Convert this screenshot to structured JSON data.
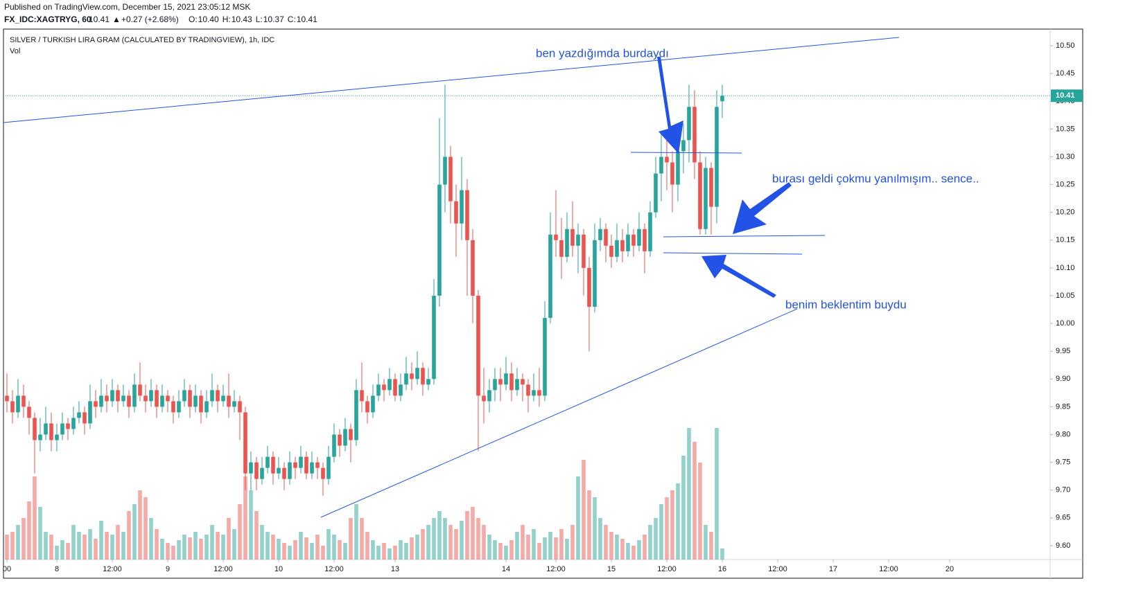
{
  "header": {
    "published": "Published on TradingView.com, December 15, 2021 23:05:12 MSK",
    "symbol": "FX_IDC:XAGTRYG, 60",
    "last": "10.41",
    "arrow": "▲",
    "change": "+0.27 (+2.68%)",
    "ohlc": [
      {
        "key": "O:",
        "value": "10.40"
      },
      {
        "key": "H:",
        "value": "10.43"
      },
      {
        "key": "L:",
        "value": "10.37"
      },
      {
        "key": "C:",
        "value": "10.41"
      }
    ]
  },
  "chart_data": {
    "type": "candlestick",
    "title": "SILVER / TURKISH LIRA GRAM (CALCULATED BY TRADINGVIEW), 1h, IDC",
    "volume_label": "Vol",
    "annotations": [
      "ben yazdığımda burdaydı",
      "burası geldi çokmu yanılmışım.. sence..",
      "benim beklentim buydu"
    ],
    "up_color": "#26a69a",
    "down_color": "#ef5350",
    "grid": false,
    "last_price": 10.41,
    "ylim": [
      9.575,
      10.53
    ],
    "yticks": [
      {
        "value": 9.6,
        "label": "9.60"
      },
      {
        "value": 9.65,
        "label": "9.65"
      },
      {
        "value": 9.7,
        "label": "9.70"
      },
      {
        "value": 9.75,
        "label": "9.75"
      },
      {
        "value": 9.8,
        "label": "9.80"
      },
      {
        "value": 9.85,
        "label": "9.85"
      },
      {
        "value": 9.9,
        "label": "9.90"
      },
      {
        "value": 9.95,
        "label": "9.95"
      },
      {
        "value": 10.0,
        "label": "10.00"
      },
      {
        "value": 10.05,
        "label": "10.05"
      },
      {
        "value": 10.1,
        "label": "10.10"
      },
      {
        "value": 10.15,
        "label": "10.15"
      },
      {
        "value": 10.2,
        "label": "10.20"
      },
      {
        "value": 10.25,
        "label": "10.25"
      },
      {
        "value": 10.3,
        "label": "10.30"
      },
      {
        "value": 10.35,
        "label": "10.35"
      },
      {
        "value": 10.4,
        "label": "10.40"
      },
      {
        "value": 10.45,
        "label": "10.45"
      },
      {
        "value": 10.5,
        "label": "10.50"
      }
    ],
    "xlim": [
      -0.625,
      188.125
    ],
    "xticks": [
      {
        "value": 0,
        "label": "00"
      },
      {
        "value": 9,
        "label": "8"
      },
      {
        "value": 19,
        "label": "12:00"
      },
      {
        "value": 29,
        "label": "9"
      },
      {
        "value": 39,
        "label": "12:00"
      },
      {
        "value": 49,
        "label": "10"
      },
      {
        "value": 59,
        "label": "12:00"
      },
      {
        "value": 70,
        "label": "13"
      },
      {
        "value": 90,
        "label": "14"
      },
      {
        "value": 99,
        "label": "12:00"
      },
      {
        "value": 109,
        "label": "15"
      },
      {
        "value": 119,
        "label": "12:00"
      },
      {
        "value": 129,
        "label": "16"
      },
      {
        "value": 139,
        "label": "12:00"
      },
      {
        "value": 149,
        "label": "17"
      },
      {
        "value": 159,
        "label": "12:00"
      },
      {
        "value": 170,
        "label": "20"
      }
    ],
    "volume_lim": [
      0,
      100
    ],
    "candles": [
      [
        9.87,
        9.91,
        9.84,
        9.86,
        18
      ],
      [
        9.86,
        9.88,
        9.82,
        9.84,
        20
      ],
      [
        9.84,
        9.9,
        9.83,
        9.87,
        25
      ],
      [
        9.87,
        9.89,
        9.83,
        9.85,
        30
      ],
      [
        9.85,
        9.86,
        9.8,
        9.83,
        42
      ],
      [
        9.83,
        9.84,
        9.73,
        9.79,
        60
      ],
      [
        9.79,
        9.83,
        9.77,
        9.8,
        38
      ],
      [
        9.8,
        9.85,
        9.79,
        9.82,
        20
      ],
      [
        9.82,
        9.84,
        9.77,
        9.79,
        18
      ],
      [
        9.79,
        9.82,
        9.77,
        9.8,
        10
      ],
      [
        9.8,
        9.84,
        9.79,
        9.82,
        14
      ],
      [
        9.82,
        9.83,
        9.79,
        9.81,
        12
      ],
      [
        9.81,
        9.85,
        9.8,
        9.83,
        25
      ],
      [
        9.83,
        9.86,
        9.82,
        9.84,
        20
      ],
      [
        9.84,
        9.85,
        9.8,
        9.82,
        18
      ],
      [
        9.82,
        9.89,
        9.81,
        9.86,
        22
      ],
      [
        9.86,
        9.88,
        9.83,
        9.85,
        15
      ],
      [
        9.85,
        9.9,
        9.84,
        9.87,
        28
      ],
      [
        9.87,
        9.89,
        9.84,
        9.86,
        20
      ],
      [
        9.86,
        9.9,
        9.85,
        9.88,
        18
      ],
      [
        9.88,
        9.89,
        9.84,
        9.86,
        25
      ],
      [
        9.86,
        9.89,
        9.85,
        9.87,
        20
      ],
      [
        9.87,
        9.88,
        9.83,
        9.85,
        35
      ],
      [
        9.85,
        9.91,
        9.84,
        9.89,
        40
      ],
      [
        9.89,
        9.93,
        9.86,
        9.87,
        50
      ],
      [
        9.87,
        9.89,
        9.84,
        9.86,
        45
      ],
      [
        9.86,
        9.9,
        9.85,
        9.88,
        30
      ],
      [
        9.88,
        9.89,
        9.83,
        9.85,
        22
      ],
      [
        9.85,
        9.89,
        9.84,
        9.87,
        15
      ],
      [
        9.87,
        9.88,
        9.84,
        9.86,
        12
      ],
      [
        9.86,
        9.87,
        9.82,
        9.84,
        10
      ],
      [
        9.84,
        9.88,
        9.83,
        9.86,
        14
      ],
      [
        9.86,
        9.9,
        9.85,
        9.88,
        18
      ],
      [
        9.88,
        9.89,
        9.83,
        9.85,
        16
      ],
      [
        9.85,
        9.89,
        9.84,
        9.87,
        20
      ],
      [
        9.87,
        9.88,
        9.82,
        9.84,
        15
      ],
      [
        9.84,
        9.88,
        9.83,
        9.86,
        18
      ],
      [
        9.86,
        9.91,
        9.85,
        9.88,
        25
      ],
      [
        9.88,
        9.89,
        9.84,
        9.86,
        20
      ],
      [
        9.86,
        9.89,
        9.85,
        9.87,
        18
      ],
      [
        9.87,
        9.91,
        9.83,
        9.85,
        30
      ],
      [
        9.85,
        9.88,
        9.84,
        9.86,
        22
      ],
      [
        9.86,
        9.87,
        9.79,
        9.84,
        40
      ],
      [
        9.84,
        9.85,
        9.7,
        9.73,
        60
      ],
      [
        9.73,
        9.77,
        9.7,
        9.75,
        50
      ],
      [
        9.75,
        9.76,
        9.7,
        9.72,
        35
      ],
      [
        9.72,
        9.76,
        9.71,
        9.74,
        25
      ],
      [
        9.74,
        9.78,
        9.73,
        9.76,
        20
      ],
      [
        9.76,
        9.77,
        9.71,
        9.73,
        18
      ],
      [
        9.73,
        9.76,
        9.72,
        9.74,
        15
      ],
      [
        9.74,
        9.75,
        9.7,
        9.72,
        12
      ],
      [
        9.72,
        9.77,
        9.71,
        9.75,
        10
      ],
      [
        9.75,
        9.76,
        9.72,
        9.74,
        14
      ],
      [
        9.74,
        9.78,
        9.73,
        9.76,
        20
      ],
      [
        9.76,
        9.77,
        9.72,
        9.73,
        16
      ],
      [
        9.73,
        9.77,
        9.72,
        9.75,
        12
      ],
      [
        9.75,
        9.76,
        9.72,
        9.74,
        18
      ],
      [
        9.74,
        9.75,
        9.69,
        9.72,
        10
      ],
      [
        9.72,
        9.78,
        9.71,
        9.76,
        22
      ],
      [
        9.76,
        9.82,
        9.75,
        9.8,
        18
      ],
      [
        9.8,
        9.81,
        9.76,
        9.78,
        14
      ],
      [
        9.78,
        9.83,
        9.77,
        9.81,
        12
      ],
      [
        9.81,
        9.82,
        9.75,
        9.79,
        30
      ],
      [
        9.79,
        9.9,
        9.78,
        9.88,
        40
      ],
      [
        9.88,
        9.93,
        9.84,
        9.86,
        30
      ],
      [
        9.86,
        9.87,
        9.82,
        9.84,
        20
      ],
      [
        9.84,
        9.89,
        9.83,
        9.87,
        14
      ],
      [
        9.87,
        9.91,
        9.86,
        9.89,
        10
      ],
      [
        9.89,
        9.9,
        9.86,
        9.88,
        12
      ],
      [
        9.88,
        9.92,
        9.87,
        9.9,
        8
      ],
      [
        9.9,
        9.91,
        9.86,
        9.87,
        10
      ],
      [
        9.87,
        9.91,
        9.86,
        9.89,
        14
      ],
      [
        9.89,
        9.94,
        9.88,
        9.91,
        12
      ],
      [
        9.91,
        9.93,
        9.88,
        9.9,
        16
      ],
      [
        9.9,
        9.95,
        9.89,
        9.92,
        18
      ],
      [
        9.92,
        9.93,
        9.87,
        9.89,
        22
      ],
      [
        9.89,
        9.92,
        9.88,
        9.9,
        25
      ],
      [
        9.9,
        10.08,
        9.89,
        10.05,
        30
      ],
      [
        10.05,
        10.37,
        10.03,
        10.25,
        35
      ],
      [
        10.25,
        10.43,
        10.2,
        10.3,
        30
      ],
      [
        10.3,
        10.32,
        10.18,
        10.22,
        25
      ],
      [
        10.22,
        10.25,
        10.12,
        10.18,
        22
      ],
      [
        10.18,
        10.3,
        10.15,
        10.24,
        28
      ],
      [
        10.24,
        10.26,
        10.05,
        10.15,
        35
      ],
      [
        10.15,
        10.17,
        10.0,
        10.05,
        38
      ],
      [
        10.05,
        10.06,
        9.77,
        9.87,
        30
      ],
      [
        9.87,
        9.92,
        9.82,
        9.86,
        25
      ],
      [
        9.86,
        9.9,
        9.84,
        9.88,
        18
      ],
      [
        9.88,
        9.92,
        9.86,
        9.9,
        14
      ],
      [
        9.9,
        9.92,
        9.86,
        9.89,
        12
      ],
      [
        9.89,
        9.94,
        9.88,
        9.91,
        10
      ],
      [
        9.91,
        9.93,
        9.86,
        9.88,
        14
      ],
      [
        9.88,
        9.92,
        9.87,
        9.9,
        20
      ],
      [
        9.9,
        9.91,
        9.86,
        9.89,
        25
      ],
      [
        9.89,
        9.9,
        9.84,
        9.87,
        18
      ],
      [
        9.87,
        9.91,
        9.86,
        9.88,
        22
      ],
      [
        9.88,
        9.92,
        9.85,
        9.87,
        12
      ],
      [
        9.87,
        10.04,
        9.86,
        10.01,
        16
      ],
      [
        10.01,
        10.2,
        10.0,
        10.16,
        20
      ],
      [
        10.16,
        10.24,
        10.12,
        10.15,
        16
      ],
      [
        10.15,
        10.19,
        10.08,
        10.12,
        22
      ],
      [
        10.12,
        10.2,
        10.11,
        10.17,
        15
      ],
      [
        10.17,
        10.22,
        10.12,
        10.14,
        25
      ],
      [
        10.14,
        10.18,
        10.09,
        10.16,
        60
      ],
      [
        10.16,
        10.17,
        10.05,
        10.1,
        72
      ],
      [
        10.1,
        10.12,
        9.95,
        10.03,
        50
      ],
      [
        10.03,
        10.18,
        10.02,
        10.15,
        45
      ],
      [
        10.15,
        10.19,
        10.13,
        10.17,
        30
      ],
      [
        10.17,
        10.18,
        10.11,
        10.14,
        25
      ],
      [
        10.14,
        10.16,
        10.1,
        10.12,
        20
      ],
      [
        10.12,
        10.18,
        10.11,
        10.15,
        18
      ],
      [
        10.15,
        10.17,
        10.11,
        10.13,
        15
      ],
      [
        10.13,
        10.18,
        10.12,
        10.16,
        12
      ],
      [
        10.16,
        10.17,
        10.12,
        10.14,
        10
      ],
      [
        10.14,
        10.2,
        10.13,
        10.17,
        14
      ],
      [
        10.17,
        10.18,
        10.09,
        10.13,
        18
      ],
      [
        10.13,
        10.22,
        10.12,
        10.2,
        25
      ],
      [
        10.2,
        10.3,
        10.19,
        10.27,
        30
      ],
      [
        10.27,
        10.34,
        10.22,
        10.3,
        40
      ],
      [
        10.3,
        10.33,
        10.24,
        10.29,
        45
      ],
      [
        10.29,
        10.31,
        10.2,
        10.25,
        50
      ],
      [
        10.25,
        10.34,
        10.22,
        10.31,
        55
      ],
      [
        10.31,
        10.36,
        10.27,
        10.33,
        75
      ],
      [
        10.33,
        10.43,
        10.29,
        10.39,
        95
      ],
      [
        10.39,
        10.42,
        10.26,
        10.29,
        85
      ],
      [
        10.29,
        10.31,
        10.16,
        10.17,
        70
      ],
      [
        10.17,
        10.3,
        10.16,
        10.28,
        25
      ],
      [
        10.28,
        10.29,
        10.16,
        10.21,
        20
      ],
      [
        10.21,
        10.42,
        10.18,
        10.39,
        95
      ],
      [
        10.4,
        10.43,
        10.37,
        10.41,
        8
      ]
    ]
  }
}
